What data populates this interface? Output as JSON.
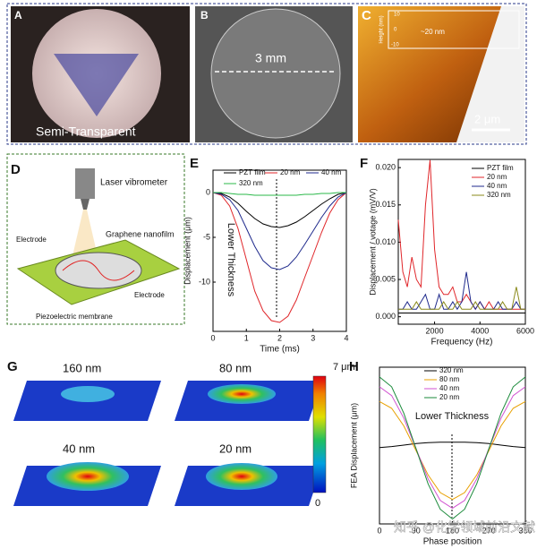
{
  "panels": {
    "letters": [
      "A",
      "B",
      "C",
      "D",
      "E",
      "F",
      "G",
      "H"
    ],
    "a_label": "Semi-Transparent",
    "b_label": "3 mm",
    "c_inset_label": "~20 nm",
    "c_inset_axis": "Height (nm)",
    "c_inset_ticks": [
      "10",
      "0",
      "-10"
    ],
    "c_scale": "2 μm",
    "d_labels": [
      "Laser vibrometer",
      "Graphene nanofilm",
      "Electrode",
      "Electrode",
      "Piezoelectric membrane"
    ],
    "g_labels": [
      "160 nm",
      "80 nm",
      "40 nm",
      "20 nm"
    ],
    "g_colorbar": [
      "7 μm",
      "0"
    ],
    "watermark": "知乎 @化学领域前沿文献"
  },
  "chart_data": [
    {
      "type": "line",
      "xlabel": "Time (ms)",
      "ylabel": "Displacement (μm)",
      "annotation": "Lower Thickness",
      "x": [
        0,
        0.25,
        0.5,
        0.75,
        1,
        1.25,
        1.5,
        1.75,
        2,
        2.25,
        2.5,
        2.75,
        3,
        3.25,
        3.5,
        3.75,
        4
      ],
      "xlim": [
        0,
        4
      ],
      "xticks": [
        0,
        1,
        2,
        3,
        4
      ],
      "ylim": [
        -15.5,
        2.5
      ],
      "yticks": [
        0,
        -5,
        -10
      ],
      "series": [
        {
          "name": "PZT film",
          "color": "#000000",
          "values": [
            0,
            -0.1,
            -0.5,
            -1.2,
            -2.1,
            -2.9,
            -3.5,
            -3.8,
            -3.9,
            -3.7,
            -3.3,
            -2.7,
            -2.0,
            -1.3,
            -0.7,
            -0.2,
            0
          ]
        },
        {
          "name": "20 nm",
          "color": "#e0262a",
          "values": [
            0,
            -0.3,
            -1.5,
            -4,
            -7.5,
            -11,
            -13.2,
            -14.3,
            -14.5,
            -13.8,
            -12,
            -9.5,
            -7,
            -4.5,
            -2.3,
            -0.8,
            0
          ]
        },
        {
          "name": "40 nm",
          "color": "#1f2a8c",
          "values": [
            0,
            -0.2,
            -0.8,
            -2,
            -4,
            -6,
            -7.6,
            -8.4,
            -8.6,
            -8.2,
            -7.2,
            -5.8,
            -4.3,
            -2.8,
            -1.5,
            -0.5,
            0
          ]
        },
        {
          "name": "320 nm",
          "color": "#2bb84a",
          "values": [
            0,
            0,
            -0.1,
            -0.2,
            -0.2,
            -0.3,
            -0.3,
            -0.3,
            -0.3,
            -0.3,
            -0.3,
            -0.2,
            -0.2,
            -0.1,
            -0.1,
            0,
            0
          ]
        }
      ]
    },
    {
      "type": "line",
      "xlabel": "Frequency (Hz)",
      "ylabel": "Displacement / votage (mV/V)",
      "x": [
        400,
        600,
        800,
        1000,
        1200,
        1400,
        1600,
        1800,
        2000,
        2200,
        2400,
        2600,
        2800,
        3000,
        3200,
        3400,
        3600,
        3800,
        4000,
        4200,
        4400,
        4600,
        4800,
        5000,
        5200,
        5400,
        5600,
        5800,
        6000
      ],
      "xlim": [
        400,
        6000
      ],
      "xticks": [
        2000,
        4000,
        6000
      ],
      "ylim": [
        -0.001,
        0.0211
      ],
      "yticks": [
        {
          "value": 0,
          "label": "0.000"
        },
        {
          "value": 0.005,
          "label": "0.005"
        },
        {
          "value": 0.01,
          "label": "0.010"
        },
        {
          "value": 0.015,
          "label": "0.015"
        },
        {
          "value": 0.02,
          "label": "0.020"
        }
      ],
      "series": [
        {
          "name": "PZT film",
          "color": "#000000",
          "values": [
            0.0005,
            0.0005,
            0.0005,
            0.0005,
            0.0005,
            0.0005,
            0.0005,
            0.0005,
            0.0005,
            0.0005,
            0.0005,
            0.0005,
            0.0005,
            0.0005,
            0.0005,
            0.0005,
            0.0005,
            0.0005,
            0.0005,
            0.0005,
            0.0005,
            0.0005,
            0.0005,
            0.0005,
            0.0005,
            0.0005,
            0.0005,
            0.0005,
            0.0005
          ]
        },
        {
          "name": "20 nm",
          "color": "#e0262a",
          "values": [
            0.013,
            0.006,
            0.004,
            0.008,
            0.005,
            0.004,
            0.015,
            0.021,
            0.009,
            0.004,
            0.003,
            0.003,
            0.004,
            0.002,
            0.002,
            0.003,
            0.002,
            0.001,
            0.002,
            0.001,
            0.002,
            0.001,
            0.001,
            0.001,
            0.001,
            0.001,
            0.001,
            0.001,
            0.001
          ]
        },
        {
          "name": "40 nm",
          "color": "#1f2a8c",
          "values": [
            0.001,
            0.001,
            0.002,
            0.001,
            0.001,
            0.002,
            0.003,
            0.001,
            0.001,
            0.003,
            0.001,
            0.001,
            0.002,
            0.001,
            0.002,
            0.006,
            0.002,
            0.001,
            0.002,
            0.001,
            0.001,
            0.001,
            0.002,
            0.001,
            0.001,
            0.001,
            0.002,
            0.001,
            0.001
          ]
        },
        {
          "name": "320 nm",
          "color": "#8a8a1a",
          "values": [
            0.001,
            0.001,
            0.001,
            0.001,
            0.002,
            0.001,
            0.001,
            0.001,
            0.001,
            0.001,
            0.002,
            0.001,
            0.001,
            0.002,
            0.001,
            0.001,
            0.001,
            0.002,
            0.001,
            0.001,
            0.001,
            0.001,
            0.001,
            0.002,
            0.001,
            0.001,
            0.004,
            0.001,
            0.001
          ]
        }
      ]
    },
    {
      "type": "line",
      "xlabel": "Phase position",
      "ylabel": "FEA Displacement (μm)",
      "annotation": "Lower Thickness",
      "x": [
        0,
        30,
        60,
        90,
        120,
        150,
        180,
        210,
        240,
        270,
        300,
        330,
        360
      ],
      "xlim": [
        0,
        360
      ],
      "xticks": [
        0,
        90,
        180,
        270,
        360
      ],
      "ylim": [
        -8,
        8
      ],
      "series": [
        {
          "name": "320 nm",
          "color": "#000000",
          "values": [
            -0.2,
            -0.1,
            0.05,
            0.2,
            0.3,
            0.35,
            0.35,
            0.35,
            0.3,
            0.2,
            0.05,
            -0.1,
            -0.2
          ]
        },
        {
          "name": "80 nm",
          "color": "#e8a000",
          "values": [
            4.5,
            3.8,
            2.0,
            -0.5,
            -3.0,
            -4.8,
            -5.5,
            -4.8,
            -3.0,
            -0.5,
            2.0,
            3.8,
            4.5
          ]
        },
        {
          "name": "40 nm",
          "color": "#d050d0",
          "values": [
            6,
            5.1,
            2.8,
            -0.3,
            -3.4,
            -5.6,
            -6.4,
            -5.6,
            -3.4,
            -0.3,
            2.8,
            5.1,
            6
          ]
        },
        {
          "name": "20 nm",
          "color": "#1a8a3a",
          "values": [
            7,
            6,
            3.3,
            -0.3,
            -3.9,
            -6.5,
            -7.5,
            -6.5,
            -3.9,
            -0.3,
            3.3,
            6,
            7
          ]
        }
      ]
    }
  ]
}
